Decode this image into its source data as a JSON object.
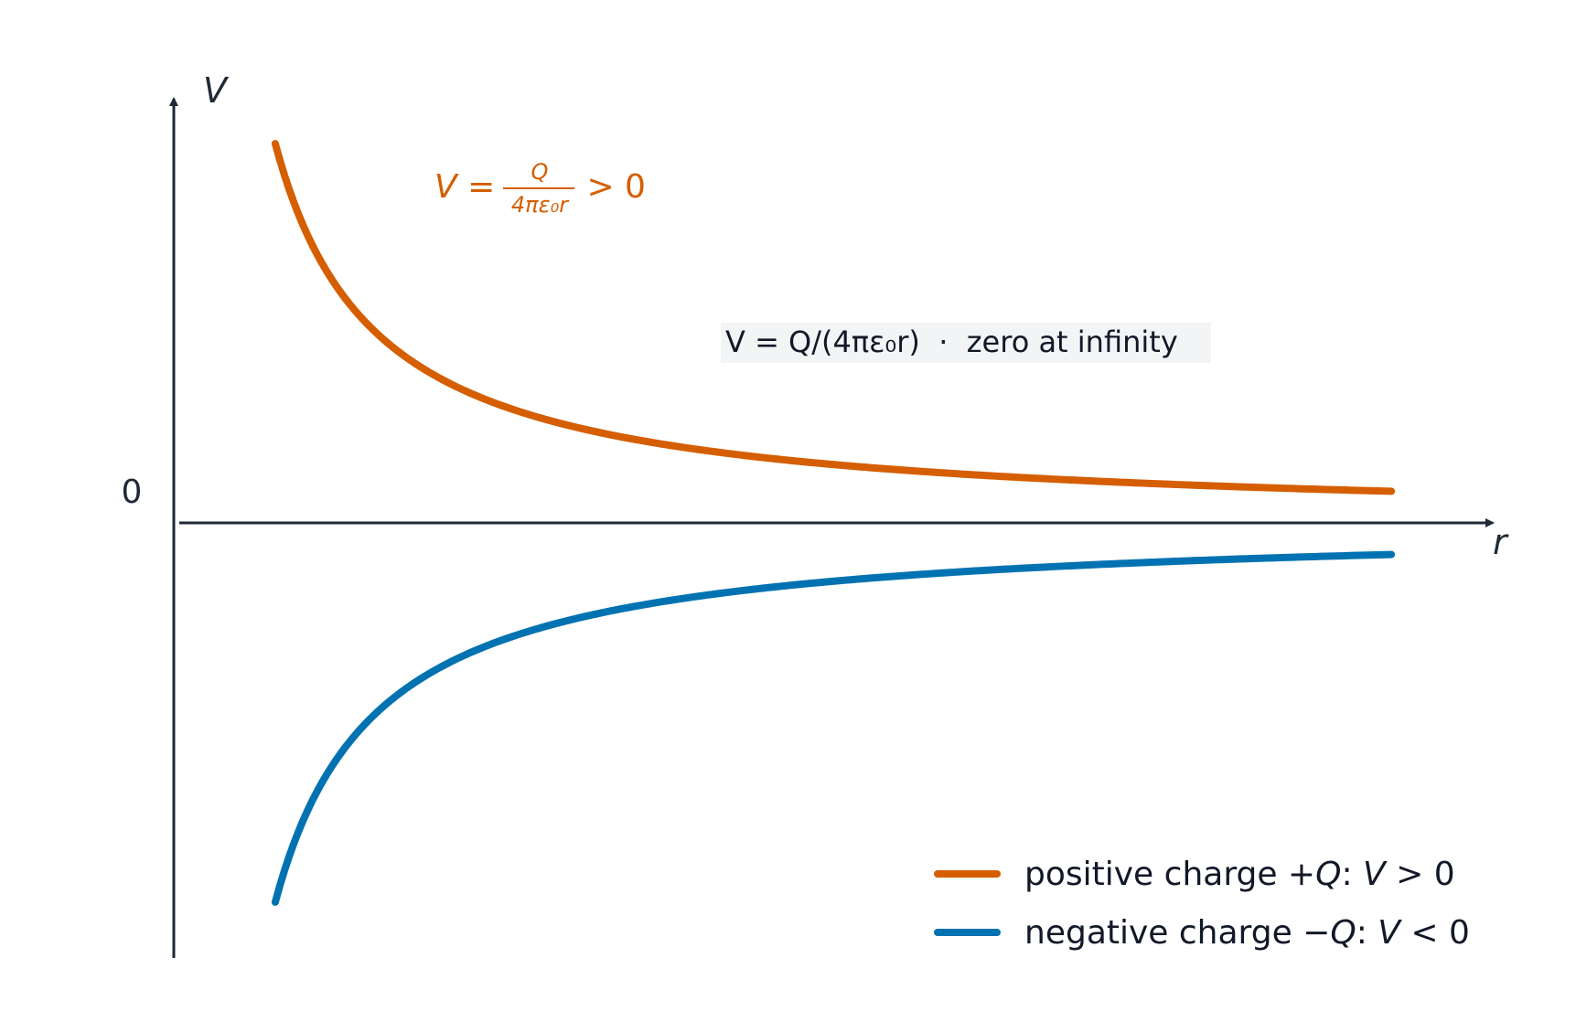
{
  "chart_data": {
    "type": "line",
    "x_axis_label": "r",
    "y_axis_label": "V",
    "zero_tick_label": "0",
    "grid": false,
    "xlim": [
      0,
      13
    ],
    "ylim": [
      -4.3,
      4.3
    ],
    "x_range": [
      1,
      12
    ],
    "series": [
      {
        "name": "positive charge +Q: V > 0",
        "color": "#d55e00",
        "sign": 1,
        "points": [
          [
            1,
            4.0
          ],
          [
            1.5,
            2.67
          ],
          [
            2,
            2.0
          ],
          [
            3,
            1.33
          ],
          [
            4,
            1.0
          ],
          [
            6,
            0.67
          ],
          [
            8,
            0.5
          ],
          [
            10,
            0.4
          ],
          [
            12,
            0.33
          ]
        ]
      },
      {
        "name": "negative charge −Q: V < 0",
        "color": "#0072b2",
        "sign": -1,
        "points": [
          [
            1,
            -4.0
          ],
          [
            1.5,
            -2.67
          ],
          [
            2,
            -2.0
          ],
          [
            3,
            -1.33
          ],
          [
            4,
            -1.0
          ],
          [
            6,
            -0.67
          ],
          [
            8,
            -0.5
          ],
          [
            10,
            -0.4
          ],
          [
            12,
            -0.33
          ]
        ]
      }
    ],
    "annotations": {
      "positive_formula": {
        "lhs": "V = ",
        "numerator": "Q",
        "denominator": "4πε₀r",
        "rhs": " > 0",
        "color": "#d55e00"
      },
      "note": {
        "text": "V = Q/(4πε₀r)  ·  zero at infinity",
        "box_color": "#f3f4f6"
      }
    },
    "legend": {
      "placement": "bottom-right",
      "entries": [
        {
          "pre": "positive charge +",
          "q": "Q",
          "mid": ": ",
          "v": "V",
          "post": " > 0",
          "color": "#d55e00"
        },
        {
          "pre": "negative charge −",
          "q": "Q",
          "mid": ": ",
          "v": "V",
          "post": " < 0",
          "color": "#0072b2"
        }
      ]
    },
    "axis_color": "#1f2937"
  }
}
